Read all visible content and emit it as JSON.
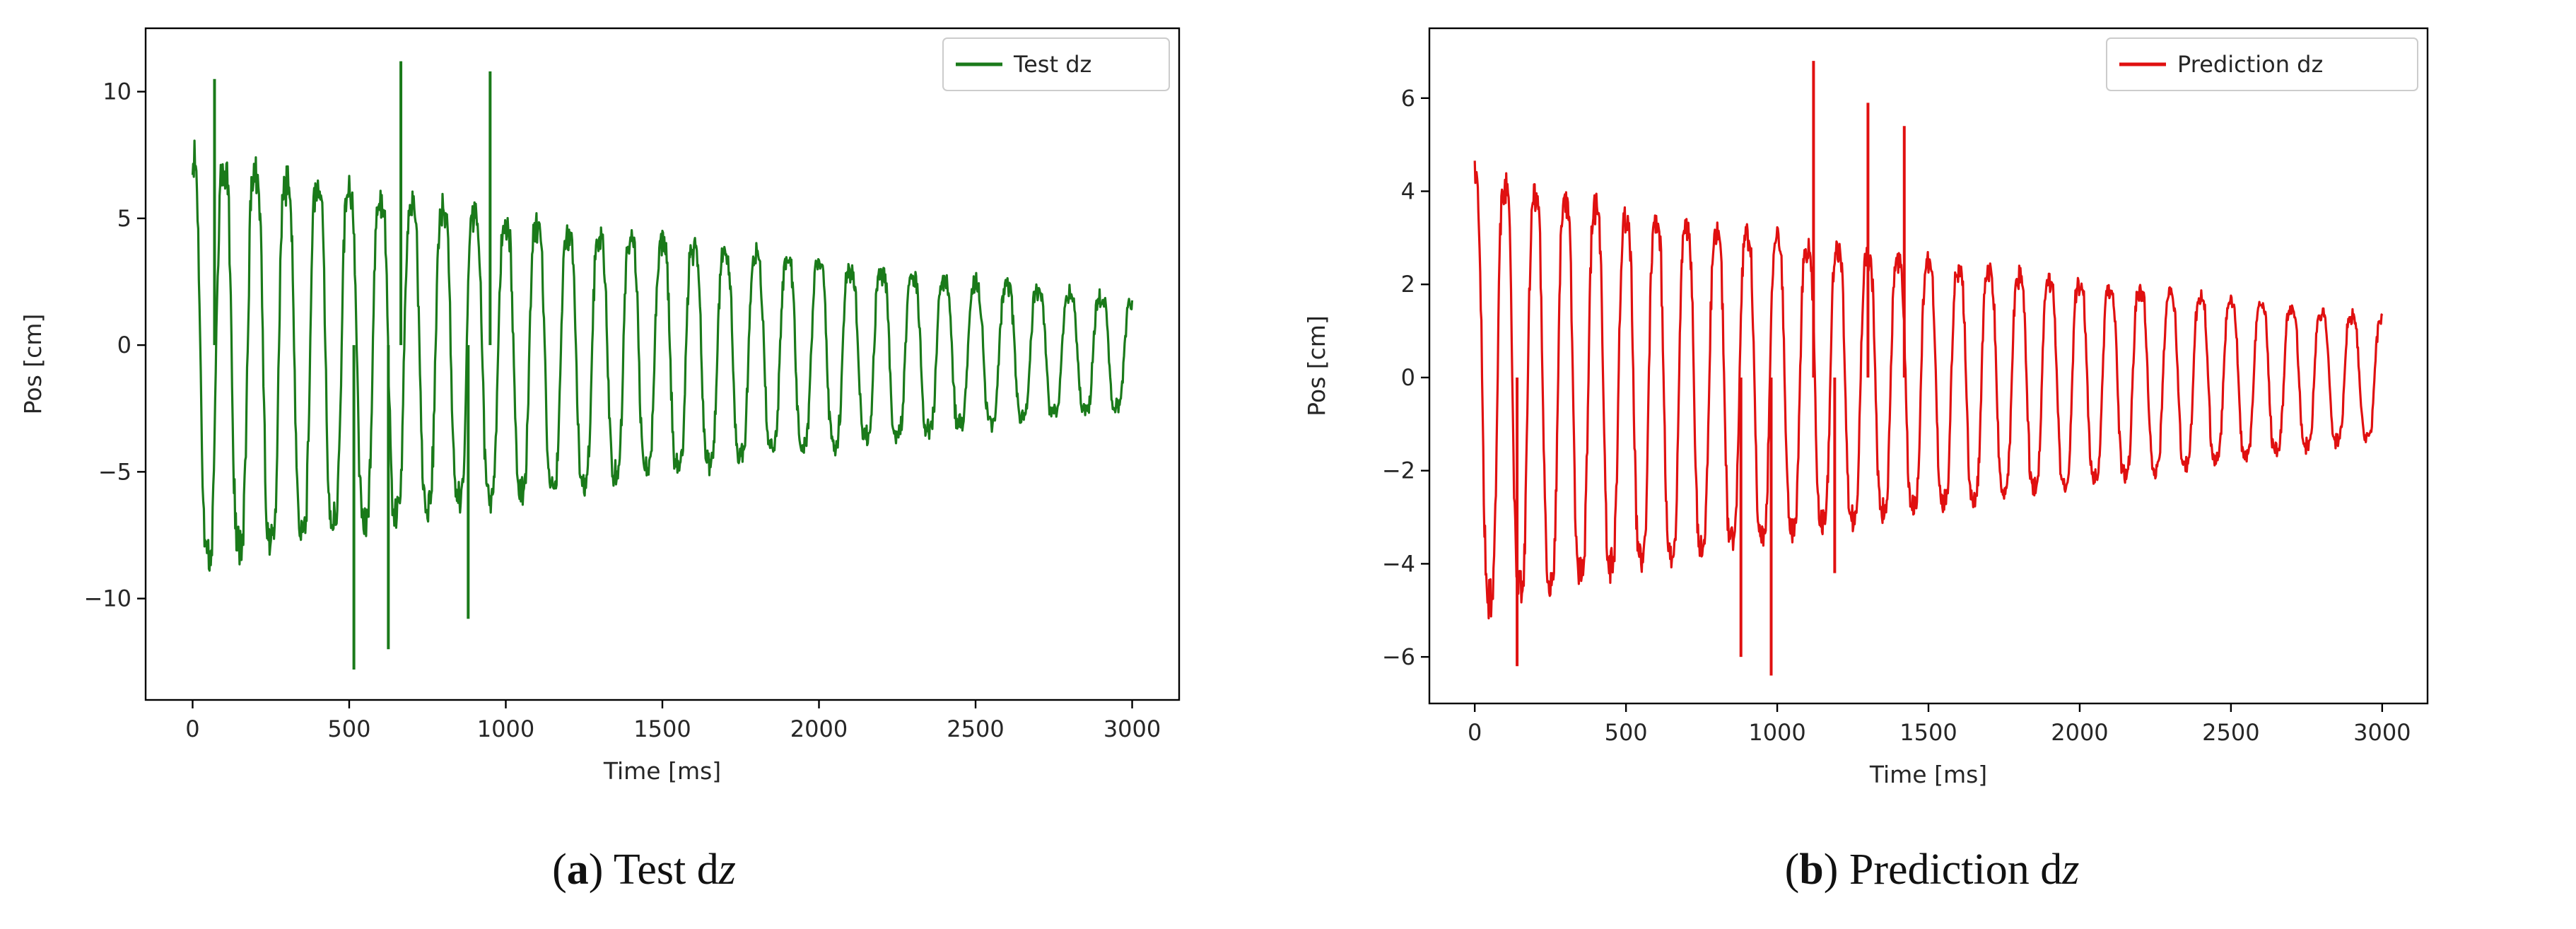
{
  "chart_data": [
    {
      "type": "line",
      "title": "",
      "xlabel": "Time [ms]",
      "ylabel": "Pos [cm]",
      "xlim": [
        -150,
        3150
      ],
      "ylim": [
        -14,
        12.5
      ],
      "xticks": [
        0,
        500,
        1000,
        1500,
        2000,
        2500,
        3000
      ],
      "xtick_labels": [
        "0",
        "500",
        "1000",
        "1500",
        "2000",
        "2500",
        "3000"
      ],
      "yticks": [
        -10,
        -5,
        0,
        5,
        10
      ],
      "ytick_labels": [
        "−10",
        "−5",
        "0",
        "5",
        "10"
      ],
      "legend": "Test dz",
      "legend_position": "top-right",
      "color": "#1a7a1a",
      "signal": {
        "t_end": 3000,
        "period_ms": 100,
        "amp_start": 9.2,
        "amp_end": 2.3,
        "offset_start": -0.6,
        "offset_end": -0.3,
        "noise": 0.9,
        "spikes": [
          {
            "x": 70,
            "y": 10.5
          },
          {
            "x": 515,
            "y": -12.8
          },
          {
            "x": 625,
            "y": -12.0
          },
          {
            "x": 665,
            "y": 11.2
          },
          {
            "x": 880,
            "y": -10.8
          },
          {
            "x": 950,
            "y": 10.8
          }
        ]
      },
      "caption": {
        "label": "a",
        "text": "Test d",
        "var": "z"
      }
    },
    {
      "type": "line",
      "title": "",
      "xlabel": "Time [ms]",
      "ylabel": "Pos [cm]",
      "xlim": [
        -150,
        3150
      ],
      "ylim": [
        -7.0,
        7.5
      ],
      "xticks": [
        0,
        500,
        1000,
        1500,
        2000,
        2500,
        3000
      ],
      "xtick_labels": [
        "0",
        "500",
        "1000",
        "1500",
        "2000",
        "2500",
        "3000"
      ],
      "yticks": [
        -6,
        -4,
        -2,
        0,
        2,
        4,
        6
      ],
      "ytick_labels": [
        "−6",
        "−4",
        "−2",
        "0",
        "2",
        "4",
        "6"
      ],
      "legend": "Prediction dz",
      "legend_position": "top-right",
      "color": "#e01010",
      "signal": {
        "t_end": 3000,
        "period_ms": 100,
        "amp_start": 5.3,
        "amp_end": 1.4,
        "offset_start": -0.3,
        "offset_end": 0.0,
        "noise": 0.3,
        "spikes": [
          {
            "x": 140,
            "y": -6.2
          },
          {
            "x": 880,
            "y": -6.0
          },
          {
            "x": 980,
            "y": -6.4
          },
          {
            "x": 1120,
            "y": 6.8
          },
          {
            "x": 1190,
            "y": -4.2
          },
          {
            "x": 1300,
            "y": 5.9
          },
          {
            "x": 1420,
            "y": 5.4
          }
        ]
      },
      "caption": {
        "label": "b",
        "text": "Prediction d",
        "var": "z"
      }
    }
  ]
}
